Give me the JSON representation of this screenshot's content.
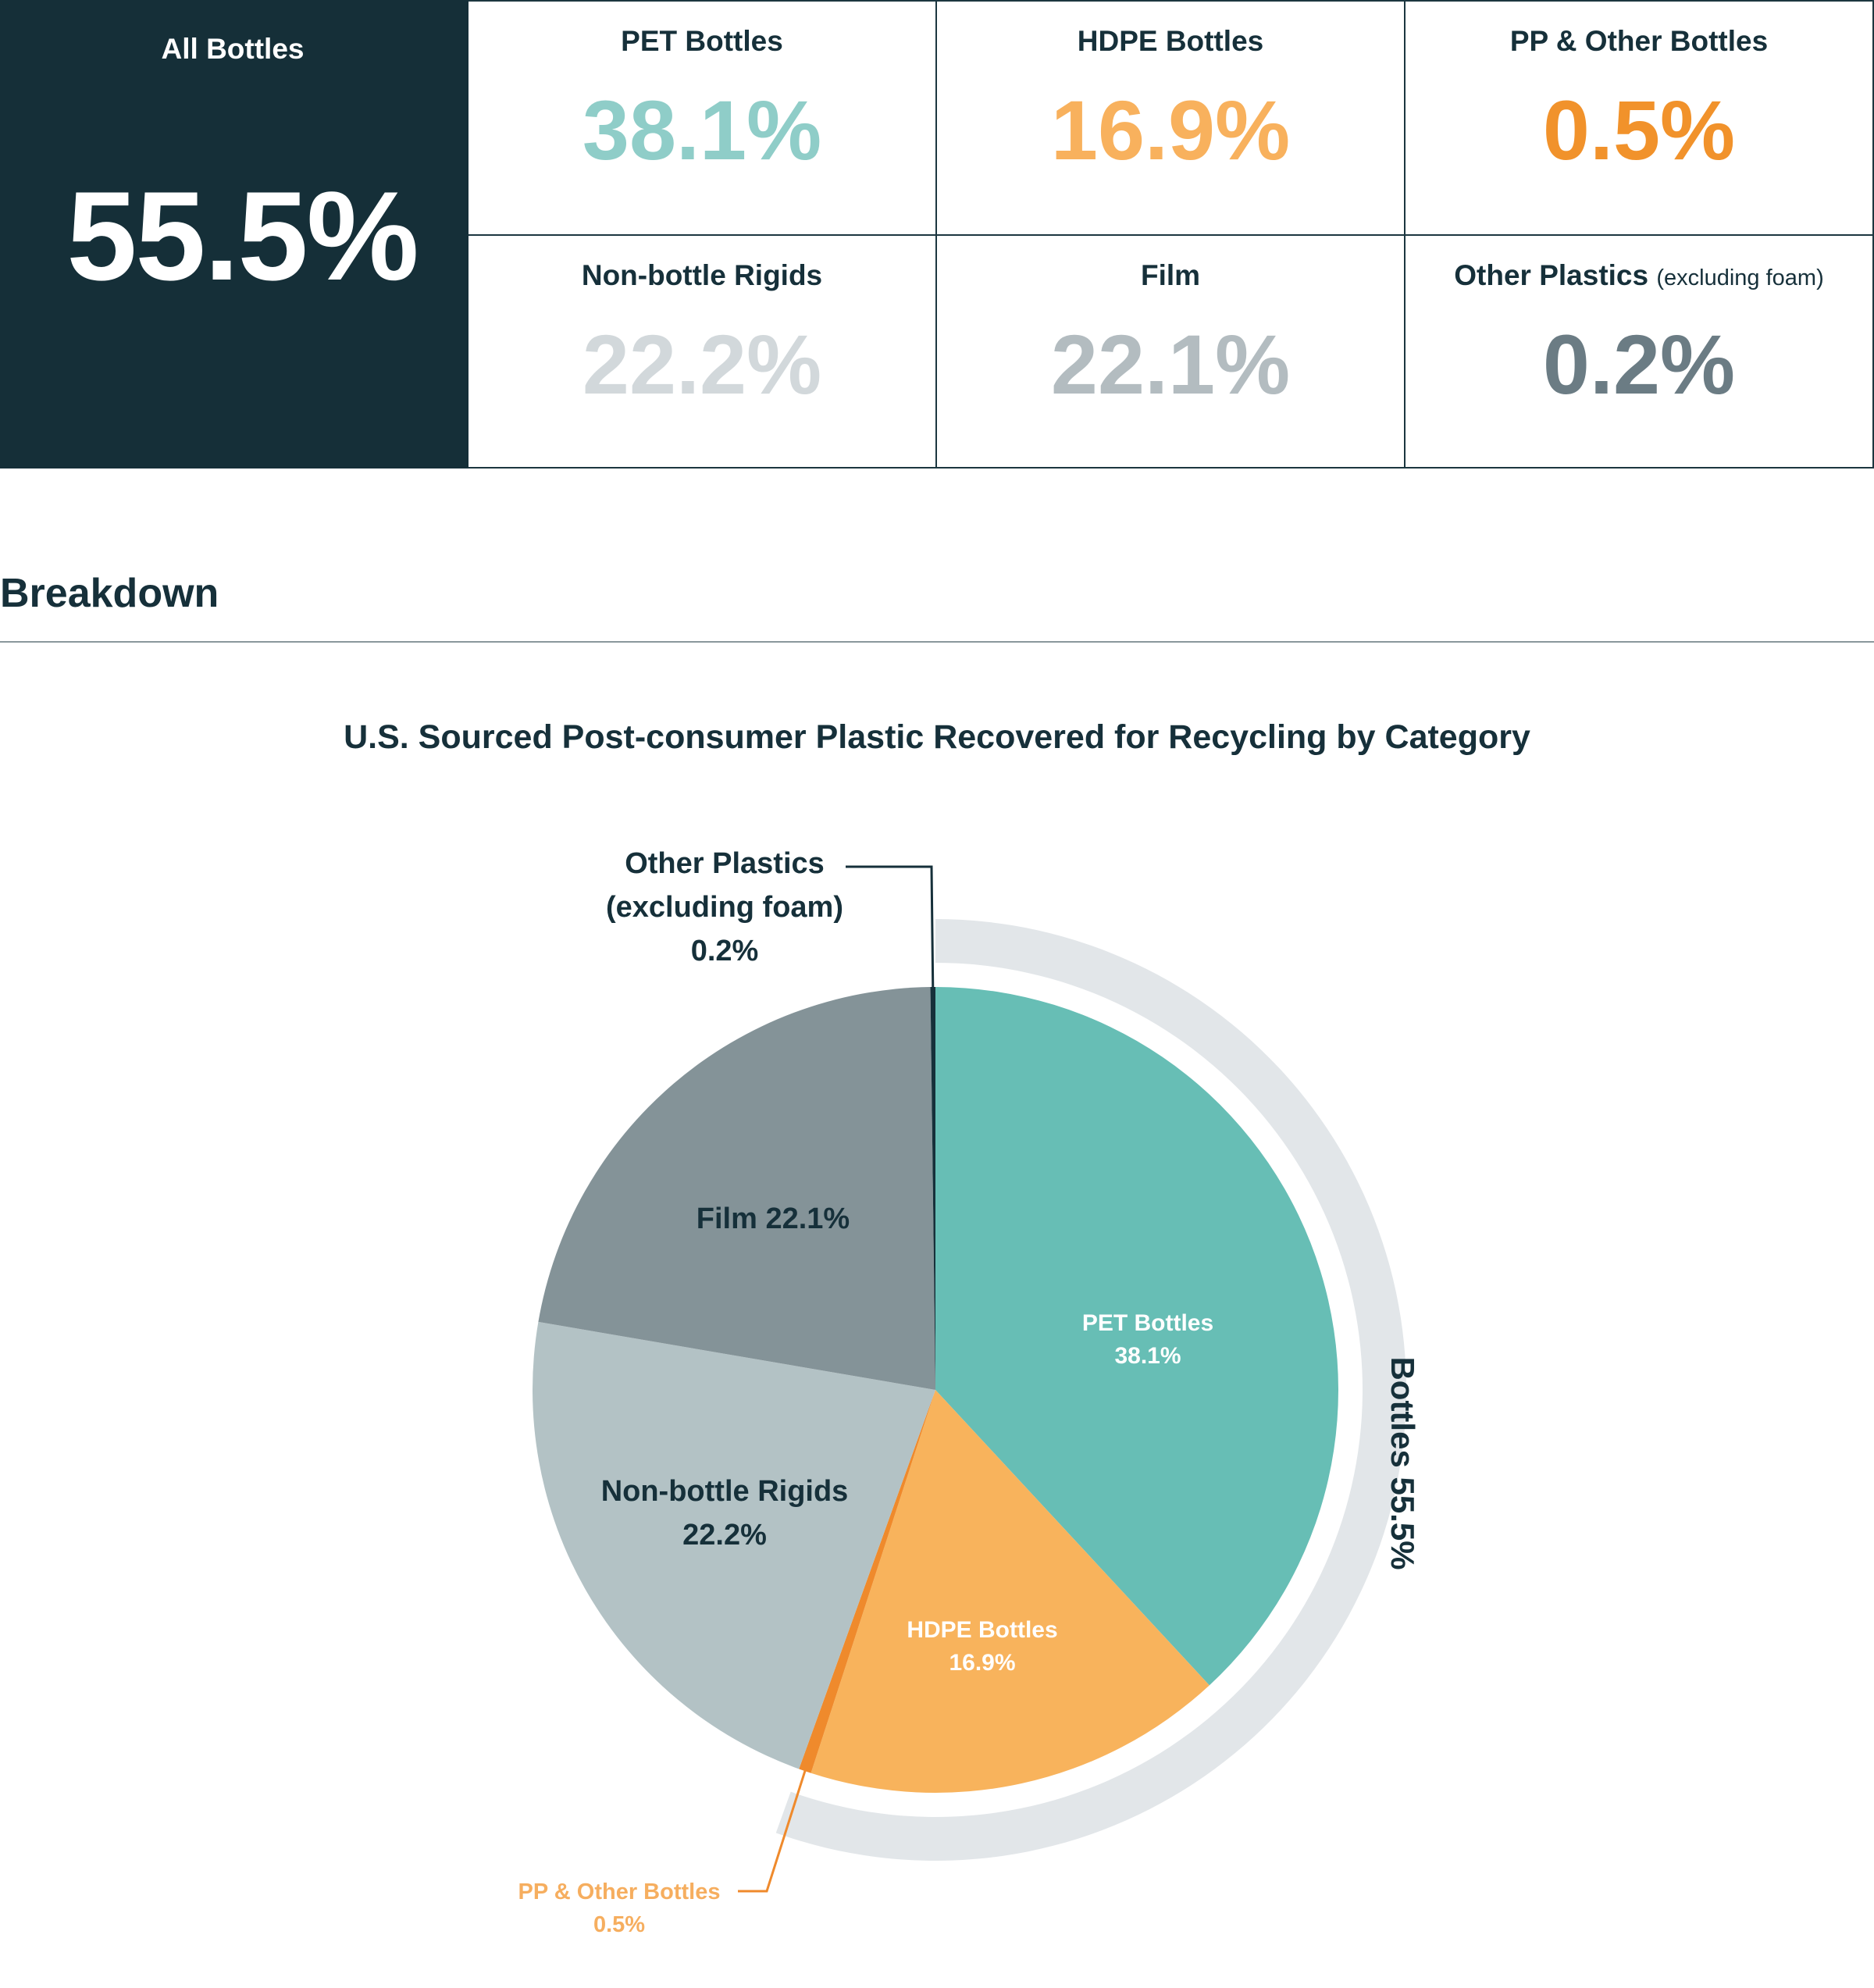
{
  "summary": {
    "all_bottles": {
      "label": "All Bottles",
      "value": "55.5%"
    },
    "cells": [
      {
        "label": "PET Bottles",
        "sub": "",
        "value": "38.1%",
        "color": "#8fcdc8"
      },
      {
        "label": "HDPE Bottles",
        "sub": "",
        "value": "16.9%",
        "color": "#f8b15d"
      },
      {
        "label": "PP & Other Bottles",
        "sub": "",
        "value": "0.5%",
        "color": "#f1922b"
      },
      {
        "label": "Non-bottle Rigids",
        "sub": "",
        "value": "22.2%",
        "color": "#d2d8db"
      },
      {
        "label": "Film",
        "sub": "",
        "value": "22.1%",
        "color": "#b3bcc0"
      },
      {
        "label": "Other Plastics",
        "sub": "(excluding foam)",
        "value": "0.2%",
        "color": "#6b7c84"
      }
    ]
  },
  "breakdown": {
    "heading": "Breakdown"
  },
  "chart_data": {
    "type": "pie",
    "title": "U.S. Sourced Post-consumer Plastic Recovered for Recycling by Category",
    "slices": [
      {
        "name": "PET Bottles",
        "value": 38.1,
        "color": "#67beb5",
        "label_lines": [
          "PET Bottles",
          "38.1%"
        ],
        "label_color": "#ffffff"
      },
      {
        "name": "HDPE Bottles",
        "value": 16.9,
        "color": "#f8b35c",
        "label_lines": [
          "HDPE Bottles",
          "16.9%"
        ],
        "label_color": "#ffffff"
      },
      {
        "name": "PP & Other Bottles",
        "value": 0.5,
        "color": "#ef8a2c",
        "label_lines": [
          "PP & Other Bottles",
          "0.5%"
        ],
        "label_color": "#f6ae5f"
      },
      {
        "name": "Non-bottle Rigids",
        "value": 22.2,
        "color": "#b3c2c5",
        "label_lines": [
          "Non-bottle Rigids",
          "22.2%"
        ],
        "label_color": "#16303a"
      },
      {
        "name": "Film",
        "value": 22.1,
        "color": "#849398",
        "label_lines": [
          "Film 22.1%"
        ],
        "label_color": "#16303a"
      },
      {
        "name": "Other Plastics (excluding foam)",
        "value": 0.2,
        "color": "#16303a",
        "label_lines": [
          "Other Plastics",
          "(excluding foam)",
          "0.2%"
        ],
        "label_color": "#16303a"
      }
    ],
    "group_ring": {
      "label": "Bottles 55.5%",
      "value": 55.5,
      "color": "#e2e6e9"
    }
  }
}
